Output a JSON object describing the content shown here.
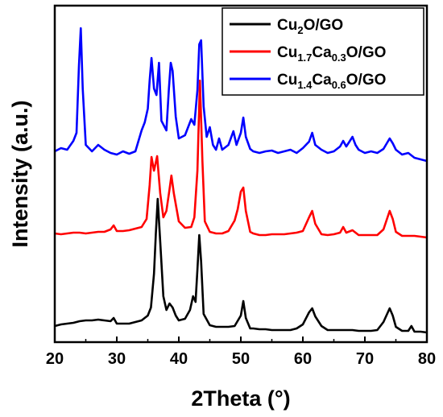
{
  "chart_data": {
    "type": "line",
    "xlabel": "2Theta (°)",
    "ylabel": "Intensity (a.u.)",
    "xlim": [
      20,
      80
    ],
    "x_ticks": [
      "20",
      "30",
      "40",
      "50",
      "60",
      "70",
      "80"
    ],
    "y_ticks_shown": false,
    "legend_position": "top-right",
    "series": [
      {
        "name": "Cu2O/GO",
        "legend": {
          "base1": "Cu",
          "sub1": "2",
          "base2": "O/GO",
          "sub2": "",
          "tail": ""
        },
        "color": "#000000",
        "points": [
          [
            20,
            405
          ],
          [
            21,
            403
          ],
          [
            22,
            402
          ],
          [
            23,
            401
          ],
          [
            24,
            399
          ],
          [
            25,
            398
          ],
          [
            26,
            398
          ],
          [
            27,
            397
          ],
          [
            28,
            398
          ],
          [
            29,
            399
          ],
          [
            29.5,
            395
          ],
          [
            30,
            402
          ],
          [
            31,
            402
          ],
          [
            32,
            402
          ],
          [
            33,
            400
          ],
          [
            34,
            398
          ],
          [
            35,
            392
          ],
          [
            35.5,
            382
          ],
          [
            36,
            340
          ],
          [
            36.3,
            290
          ],
          [
            36.6,
            247
          ],
          [
            37,
            300
          ],
          [
            37.5,
            368
          ],
          [
            38,
            385
          ],
          [
            38.5,
            377
          ],
          [
            39,
            382
          ],
          [
            39.5,
            392
          ],
          [
            40,
            398
          ],
          [
            41,
            396
          ],
          [
            41.8,
            385
          ],
          [
            42.3,
            368
          ],
          [
            42.7,
            375
          ],
          [
            43,
            335
          ],
          [
            43.3,
            292
          ],
          [
            43.6,
            325
          ],
          [
            44,
            390
          ],
          [
            45,
            404
          ],
          [
            46,
            406
          ],
          [
            47,
            406
          ],
          [
            48,
            406
          ],
          [
            49,
            405
          ],
          [
            50,
            392
          ],
          [
            50.4,
            374
          ],
          [
            50.8,
            395
          ],
          [
            51.5,
            408
          ],
          [
            52,
            408
          ],
          [
            53,
            409
          ],
          [
            54,
            409
          ],
          [
            55,
            410
          ],
          [
            56,
            410
          ],
          [
            57,
            410
          ],
          [
            58,
            410
          ],
          [
            59,
            408
          ],
          [
            60,
            403
          ],
          [
            61,
            388
          ],
          [
            61.5,
            383
          ],
          [
            62,
            393
          ],
          [
            63,
            405
          ],
          [
            64,
            410
          ],
          [
            65,
            410
          ],
          [
            66,
            410
          ],
          [
            67,
            410
          ],
          [
            68,
            410
          ],
          [
            69,
            411
          ],
          [
            70,
            411
          ],
          [
            71,
            411
          ],
          [
            72,
            410
          ],
          [
            73,
            400
          ],
          [
            74,
            383
          ],
          [
            74.5,
            392
          ],
          [
            75,
            406
          ],
          [
            76,
            411
          ],
          [
            77,
            411
          ],
          [
            77.5,
            405
          ],
          [
            78,
            412
          ],
          [
            79,
            412
          ],
          [
            80,
            413
          ]
        ]
      },
      {
        "name": "Cu1.7Ca0.3O/GO",
        "legend": {
          "base1": "Cu",
          "sub1": "1.7",
          "base2": "Ca",
          "sub2": "0.3",
          "tail": "O/GO"
        },
        "color": "#ff0000",
        "points": [
          [
            20,
            290
          ],
          [
            21,
            291
          ],
          [
            22,
            290
          ],
          [
            23,
            289
          ],
          [
            24,
            289
          ],
          [
            25,
            290
          ],
          [
            26,
            289
          ],
          [
            27,
            288
          ],
          [
            28,
            288
          ],
          [
            29,
            285
          ],
          [
            29.5,
            280
          ],
          [
            30,
            287
          ],
          [
            31,
            287
          ],
          [
            32,
            286
          ],
          [
            33,
            284
          ],
          [
            34,
            282
          ],
          [
            34.8,
            272
          ],
          [
            35.3,
            230
          ],
          [
            35.6,
            195
          ],
          [
            36,
            212
          ],
          [
            36.5,
            194
          ],
          [
            37,
            240
          ],
          [
            37.5,
            270
          ],
          [
            38,
            262
          ],
          [
            38.5,
            235
          ],
          [
            38.8,
            218
          ],
          [
            39.2,
            240
          ],
          [
            40,
            275
          ],
          [
            41,
            283
          ],
          [
            42,
            282
          ],
          [
            42.5,
            270
          ],
          [
            43,
            212
          ],
          [
            43.4,
            100
          ],
          [
            43.8,
            200
          ],
          [
            44.2,
            275
          ],
          [
            45,
            288
          ],
          [
            46,
            290
          ],
          [
            47,
            290
          ],
          [
            48,
            287
          ],
          [
            49,
            274
          ],
          [
            49.5,
            260
          ],
          [
            50,
            238
          ],
          [
            50.4,
            233
          ],
          [
            50.8,
            262
          ],
          [
            51.5,
            288
          ],
          [
            52,
            290
          ],
          [
            53,
            292
          ],
          [
            54,
            292
          ],
          [
            55,
            291
          ],
          [
            56,
            291
          ],
          [
            57,
            291
          ],
          [
            58,
            290
          ],
          [
            59,
            289
          ],
          [
            60,
            287
          ],
          [
            61,
            270
          ],
          [
            61.5,
            262
          ],
          [
            62,
            278
          ],
          [
            63,
            291
          ],
          [
            64,
            292
          ],
          [
            65,
            291
          ],
          [
            66,
            289
          ],
          [
            66.5,
            282
          ],
          [
            67,
            289
          ],
          [
            68,
            286
          ],
          [
            69,
            292
          ],
          [
            70,
            292
          ],
          [
            71,
            292
          ],
          [
            72,
            292
          ],
          [
            73,
            285
          ],
          [
            74,
            262
          ],
          [
            74.5,
            272
          ],
          [
            75,
            288
          ],
          [
            76,
            293
          ],
          [
            77,
            293
          ],
          [
            78,
            293
          ],
          [
            79,
            294
          ],
          [
            80,
            295
          ]
        ]
      },
      {
        "name": "Cu1.4Ca0.6O/GO",
        "legend": {
          "base1": "Cu",
          "sub1": "1.4",
          "base2": "Ca",
          "sub2": "0.6",
          "tail": "O/GO"
        },
        "color": "#0000ff",
        "points": [
          [
            20,
            188
          ],
          [
            21,
            184
          ],
          [
            22,
            186
          ],
          [
            23,
            175
          ],
          [
            23.5,
            165
          ],
          [
            23.9,
            82
          ],
          [
            24.2,
            35
          ],
          [
            24.5,
            110
          ],
          [
            25,
            180
          ],
          [
            26,
            188
          ],
          [
            27,
            180
          ],
          [
            28,
            186
          ],
          [
            29,
            190
          ],
          [
            30,
            192
          ],
          [
            31,
            188
          ],
          [
            32,
            191
          ],
          [
            33,
            188
          ],
          [
            34,
            162
          ],
          [
            34.5,
            152
          ],
          [
            35,
            135
          ],
          [
            35.3,
            100
          ],
          [
            35.6,
            72
          ],
          [
            36,
            110
          ],
          [
            36.4,
            118
          ],
          [
            36.8,
            78
          ],
          [
            37.2,
            150
          ],
          [
            38,
            162
          ],
          [
            38.4,
            110
          ],
          [
            38.7,
            78
          ],
          [
            39,
            88
          ],
          [
            39.5,
            145
          ],
          [
            40,
            172
          ],
          [
            41,
            168
          ],
          [
            42,
            148
          ],
          [
            42.5,
            155
          ],
          [
            43,
            112
          ],
          [
            43.3,
            55
          ],
          [
            43.6,
            50
          ],
          [
            44,
            132
          ],
          [
            44.5,
            170
          ],
          [
            45,
            158
          ],
          [
            45.5,
            180
          ],
          [
            46,
            186
          ],
          [
            46.5,
            172
          ],
          [
            47,
            186
          ],
          [
            48,
            180
          ],
          [
            48.8,
            163
          ],
          [
            49.3,
            180
          ],
          [
            50,
            165
          ],
          [
            50.4,
            146
          ],
          [
            50.8,
            170
          ],
          [
            51.5,
            185
          ],
          [
            52,
            188
          ],
          [
            53,
            190
          ],
          [
            54,
            188
          ],
          [
            55,
            187
          ],
          [
            56,
            190
          ],
          [
            57,
            188
          ],
          [
            58,
            186
          ],
          [
            59,
            190
          ],
          [
            60,
            184
          ],
          [
            61,
            176
          ],
          [
            61.5,
            165
          ],
          [
            62,
            180
          ],
          [
            63,
            186
          ],
          [
            64,
            190
          ],
          [
            65,
            188
          ],
          [
            66,
            182
          ],
          [
            66.5,
            175
          ],
          [
            67,
            182
          ],
          [
            67.5,
            176
          ],
          [
            68,
            170
          ],
          [
            68.5,
            180
          ],
          [
            69,
            186
          ],
          [
            70,
            190
          ],
          [
            71,
            188
          ],
          [
            72,
            190
          ],
          [
            73,
            185
          ],
          [
            74,
            172
          ],
          [
            74.5,
            178
          ],
          [
            75,
            186
          ],
          [
            76,
            192
          ],
          [
            77,
            190
          ],
          [
            78,
            196
          ],
          [
            79,
            198
          ],
          [
            80,
            200
          ]
        ]
      }
    ]
  }
}
